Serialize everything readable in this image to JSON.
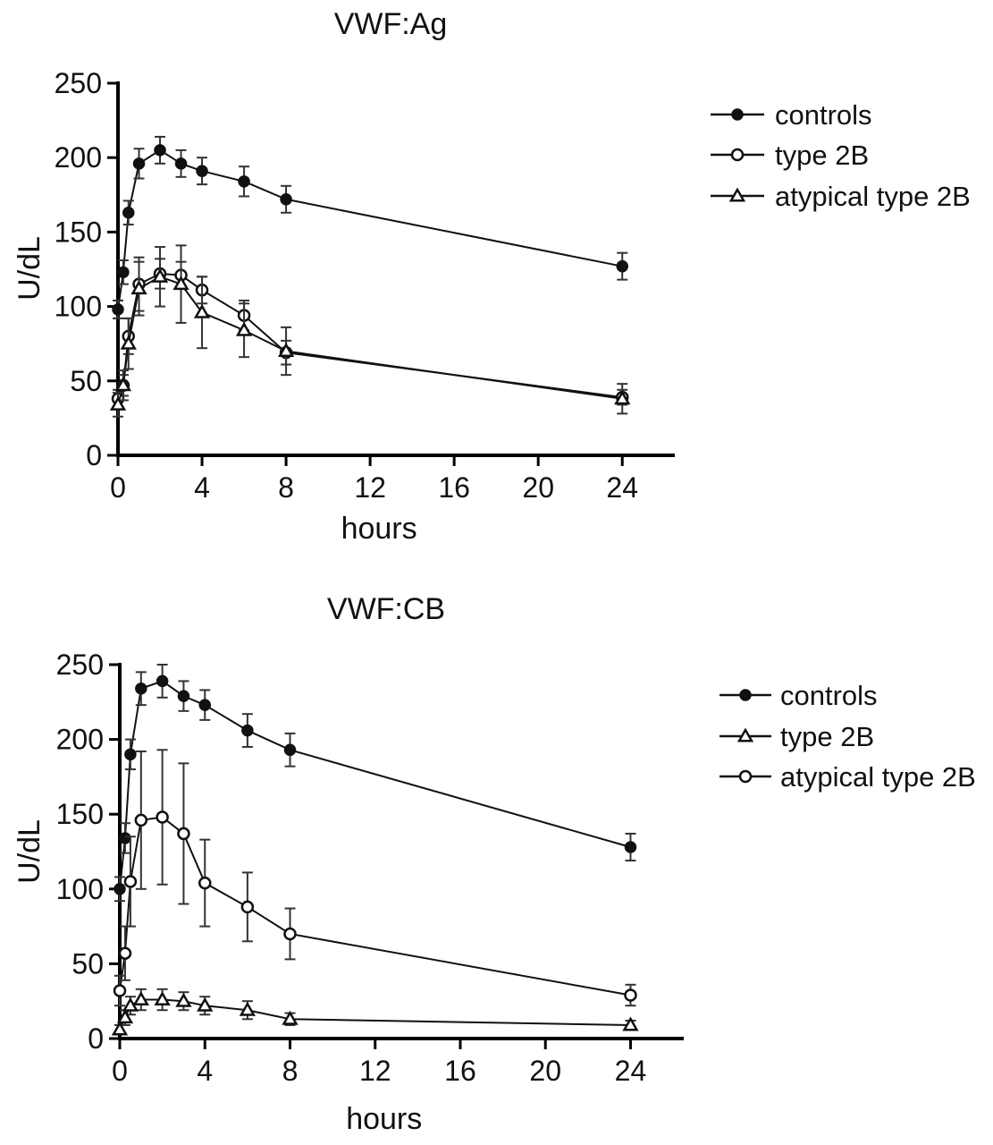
{
  "chart_data": [
    {
      "type": "line",
      "title": "VWF:Ag",
      "xlabel": "hours",
      "ylabel": "U/dL",
      "xlim": [
        0,
        26.5
      ],
      "ylim": [
        0,
        250
      ],
      "xticks": [
        0,
        4,
        8,
        12,
        16,
        20,
        24
      ],
      "yticks": [
        0,
        50,
        100,
        150,
        200,
        250
      ],
      "xtick_labels": [
        "0",
        "4",
        "8",
        "12",
        "16",
        "20",
        "24"
      ],
      "ytick_labels": [
        "0",
        "50",
        "100",
        "150",
        "200",
        "250"
      ],
      "legend_position": "top-right",
      "series": [
        {
          "name": "controls",
          "marker": "filled-circle",
          "x": [
            0,
            0.25,
            0.5,
            1,
            2,
            3,
            4,
            6,
            8,
            24
          ],
          "y": [
            98,
            123,
            163,
            196,
            205,
            196,
            191,
            184,
            172,
            127
          ],
          "err": [
            6,
            8,
            8,
            10,
            9,
            9,
            9,
            10,
            9,
            9
          ]
        },
        {
          "name": "type 2B",
          "marker": "open-circle",
          "x": [
            0,
            0.25,
            0.5,
            1,
            2,
            3,
            4,
            6,
            8,
            24
          ],
          "y": [
            38,
            47,
            80,
            115,
            122,
            121,
            111,
            94,
            69,
            39
          ],
          "err": [
            6,
            7,
            12,
            18,
            10,
            9,
            9,
            10,
            8,
            5
          ]
        },
        {
          "name": "atypical type 2B",
          "marker": "open-triangle",
          "x": [
            0,
            0.25,
            0.5,
            1,
            2,
            3,
            4,
            6,
            8,
            24
          ],
          "y": [
            34,
            47,
            75,
            112,
            120,
            115,
            96,
            84,
            70,
            38
          ],
          "err": [
            8,
            10,
            17,
            18,
            20,
            26,
            24,
            18,
            16,
            10
          ]
        }
      ]
    },
    {
      "type": "line",
      "title": "VWF:CB",
      "xlabel": "hours",
      "ylabel": "U/dL",
      "xlim": [
        0,
        26.5
      ],
      "ylim": [
        0,
        250
      ],
      "xticks": [
        0,
        4,
        8,
        12,
        16,
        20,
        24
      ],
      "yticks": [
        0,
        50,
        100,
        150,
        200,
        250
      ],
      "xtick_labels": [
        "0",
        "4",
        "8",
        "12",
        "16",
        "20",
        "24"
      ],
      "ytick_labels": [
        "0",
        "50",
        "100",
        "150",
        "200",
        "250"
      ],
      "legend_position": "right",
      "series": [
        {
          "name": "controls",
          "marker": "filled-circle",
          "x": [
            0,
            0.25,
            0.5,
            1,
            2,
            3,
            4,
            6,
            8,
            24
          ],
          "y": [
            100,
            134,
            190,
            234,
            239,
            229,
            223,
            206,
            193,
            128
          ],
          "err": [
            8,
            10,
            10,
            11,
            11,
            10,
            10,
            11,
            11,
            9
          ]
        },
        {
          "name": "type 2B",
          "marker": "open-triangle",
          "x": [
            0,
            0.25,
            0.5,
            1,
            2,
            3,
            4,
            6,
            8,
            24
          ],
          "y": [
            6,
            14,
            22,
            26,
            26,
            25,
            22,
            19,
            13,
            9
          ],
          "err": [
            3,
            5,
            6,
            7,
            7,
            6,
            6,
            6,
            4,
            3
          ]
        },
        {
          "name": "atypical type 2B",
          "marker": "open-circle",
          "x": [
            0,
            0.25,
            0.5,
            1,
            2,
            3,
            4,
            6,
            8,
            24
          ],
          "y": [
            32,
            57,
            105,
            146,
            148,
            137,
            104,
            88,
            70,
            29
          ],
          "err": [
            10,
            18,
            30,
            46,
            45,
            47,
            29,
            23,
            17,
            7
          ]
        }
      ]
    }
  ]
}
